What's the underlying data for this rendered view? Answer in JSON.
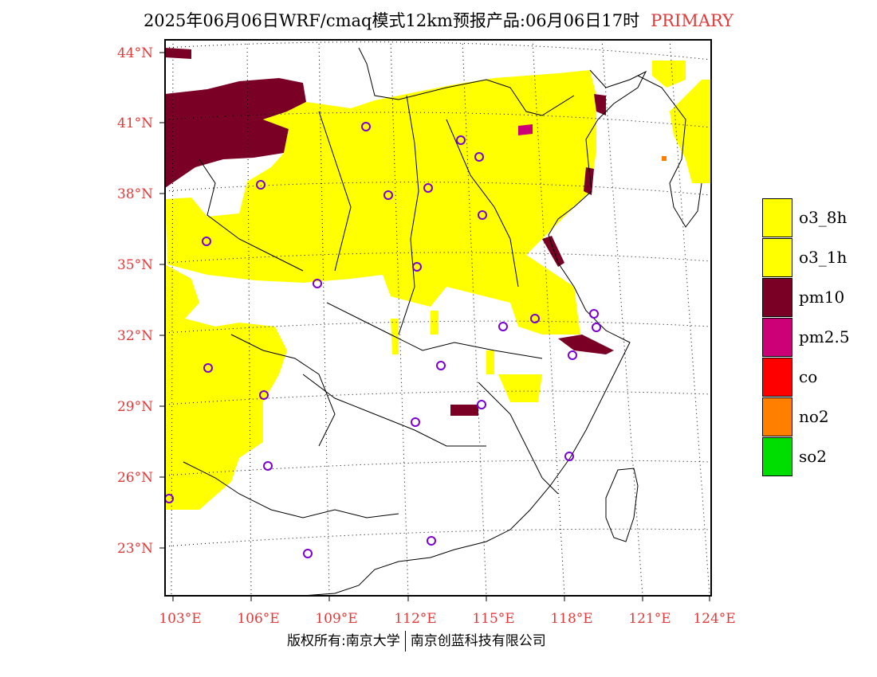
{
  "title": "2025年06月06日WRF/cmaq模式12km预报产品:06月06日17时",
  "title_tag": "PRIMARY",
  "copyright_left": "版权所有:南京大学",
  "copyright_right": "南京创蓝科技有限公司",
  "map": {
    "lat_labels": [
      "44°N",
      "41°N",
      "38°N",
      "35°N",
      "32°N",
      "29°N",
      "26°N",
      "23°N"
    ],
    "lon_labels": [
      "103°E",
      "106°E",
      "109°E",
      "112°E",
      "115°E",
      "118°E",
      "121°E",
      "124°E"
    ],
    "label_color": "#e03a3a"
  },
  "legend": [
    {
      "label": "o3_8h",
      "color": "#ffff00"
    },
    {
      "label": "o3_1h",
      "color": "#ffff00"
    },
    {
      "label": "pm10",
      "color": "#7a0026"
    },
    {
      "label": "pm2.5",
      "color": "#cc0077"
    },
    {
      "label": "co",
      "color": "#ff0000"
    },
    {
      "label": "no2",
      "color": "#ff7f00"
    },
    {
      "label": "so2",
      "color": "#00dd00"
    }
  ]
}
